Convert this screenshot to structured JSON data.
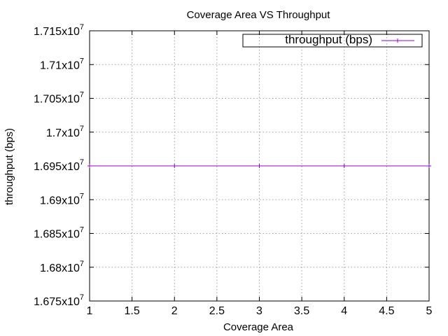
{
  "chart_data": {
    "type": "line",
    "title": "Coverage Area VS Throughput",
    "xlabel": "Coverage Area",
    "ylabel": "throughput (bps)",
    "xlim": [
      1,
      5
    ],
    "ylim": [
      16750000,
      17150000
    ],
    "x_ticks": [
      1,
      1.5,
      2,
      2.5,
      3,
      3.5,
      4,
      4.5,
      5
    ],
    "x_tick_labels": [
      "1",
      "1.5",
      "2",
      "2.5",
      "3",
      "3.5",
      "4",
      "4.5",
      "5"
    ],
    "y_ticks": [
      16750000,
      16800000,
      16850000,
      16900000,
      16950000,
      17000000,
      17050000,
      17100000,
      17150000
    ],
    "y_tick_labels": [
      {
        "mantissa": "1.675x10",
        "exp": "7"
      },
      {
        "mantissa": "1.68x10",
        "exp": "7"
      },
      {
        "mantissa": "1.685x10",
        "exp": "7"
      },
      {
        "mantissa": "1.69x10",
        "exp": "7"
      },
      {
        "mantissa": "1.695x10",
        "exp": "7"
      },
      {
        "mantissa": "1.7x10",
        "exp": "7"
      },
      {
        "mantissa": "1.705x10",
        "exp": "7"
      },
      {
        "mantissa": "1.71x10",
        "exp": "7"
      },
      {
        "mantissa": "1.715x10",
        "exp": "7"
      }
    ],
    "grid": true,
    "legend_position": "top-right",
    "series": [
      {
        "name": "throughput (bps)",
        "color": "#9400d3",
        "marker": "plus",
        "x": [
          1,
          2,
          3,
          4,
          5
        ],
        "y": [
          16950000,
          16950000,
          16950000,
          16950000,
          16950000
        ]
      }
    ]
  }
}
